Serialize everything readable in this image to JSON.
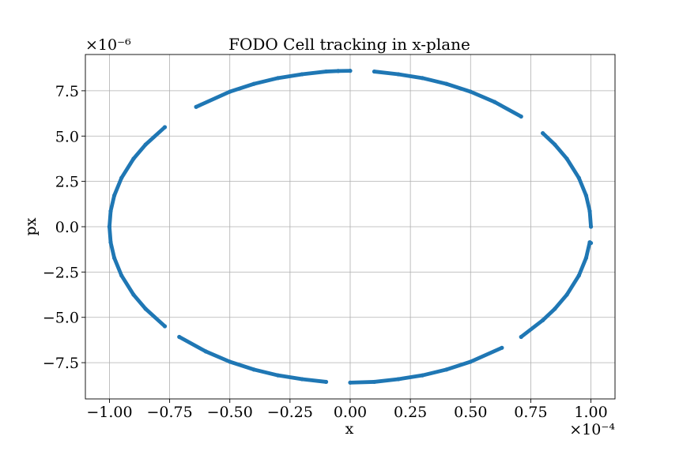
{
  "chart_data": {
    "type": "scatter",
    "title": "FODO Cell tracking in x-plane",
    "xlabel": "x",
    "ylabel": "px",
    "x_offset_text": "×10⁻⁴",
    "y_offset_text": "×10⁻⁶",
    "x_scale": 0.0001,
    "y_scale": 1e-06,
    "xlim": [
      -1.1,
      1.1
    ],
    "ylim": [
      -9.5,
      9.5
    ],
    "x_ticks": [
      -1.0,
      -0.75,
      -0.5,
      -0.25,
      0.0,
      0.25,
      0.5,
      0.75,
      1.0
    ],
    "x_tick_labels": [
      "−1.00",
      "−0.75",
      "−0.50",
      "−0.25",
      "0.00",
      "0.25",
      "0.50",
      "0.75",
      "1.00"
    ],
    "y_ticks": [
      -7.5,
      -5.0,
      -2.5,
      0.0,
      2.5,
      5.0,
      7.5
    ],
    "y_tick_labels": [
      "−7.5",
      "−5.0",
      "−2.5",
      "0.0",
      "2.5",
      "5.0",
      "7.5"
    ],
    "grid": true,
    "marker_color": "#1f77b4",
    "ellipse": {
      "x_amplitude": 1.0,
      "y_amplitude": 8.6
    },
    "series": [
      {
        "arcs": [
          {
            "x": [
              1.0,
              0.995,
              0.98,
              0.95,
              0.9,
              0.85,
              0.8
            ],
            "y": [
              0.0,
              0.86,
              1.72,
              2.69,
              3.75,
              4.53,
              5.16
            ]
          },
          {
            "x": [
              0.71,
              0.6,
              0.5,
              0.4,
              0.3,
              0.2,
              0.1
            ],
            "y": [
              6.08,
              6.88,
              7.45,
              7.88,
              8.2,
              8.41,
              8.56
            ]
          },
          {
            "x": [
              0.0,
              -0.05
            ],
            "y": [
              8.6,
              8.59
            ]
          },
          {
            "x": [
              -0.64,
              -0.5,
              -0.4,
              -0.3,
              -0.2,
              -0.1,
              -0.05
            ],
            "y": [
              6.61,
              7.45,
              7.88,
              8.2,
              8.41,
              8.56,
              8.59
            ]
          },
          {
            "x": [
              -0.77,
              -0.85,
              -0.9,
              -0.95,
              -0.98,
              -0.995,
              -1.0
            ],
            "y": [
              5.49,
              4.53,
              3.75,
              2.69,
              1.72,
              0.86,
              0.0
            ]
          },
          {
            "x": [
              -1.0,
              -0.995,
              -0.98,
              -0.95,
              -0.9,
              -0.85,
              -0.77
            ],
            "y": [
              0.0,
              -0.86,
              -1.72,
              -2.69,
              -3.75,
              -4.53,
              -5.49
            ]
          },
          {
            "x": [
              -0.71,
              -0.6,
              -0.5,
              -0.4,
              -0.3,
              -0.2,
              -0.1
            ],
            "y": [
              -6.08,
              -6.88,
              -7.45,
              -7.88,
              -8.2,
              -8.41,
              -8.56
            ]
          },
          {
            "x": [
              0.0,
              0.1,
              0.2,
              0.3,
              0.4,
              0.5,
              0.63
            ],
            "y": [
              -8.6,
              -8.56,
              -8.41,
              -8.2,
              -7.88,
              -7.45,
              -6.68
            ]
          },
          {
            "x": [
              0.71,
              0.8,
              0.85,
              0.9,
              0.95,
              0.98,
              0.995,
              1.0
            ],
            "y": [
              -6.08,
              -5.16,
              -4.53,
              -3.75,
              -2.69,
              -1.72,
              -0.86,
              -0.9
            ]
          }
        ]
      }
    ]
  }
}
